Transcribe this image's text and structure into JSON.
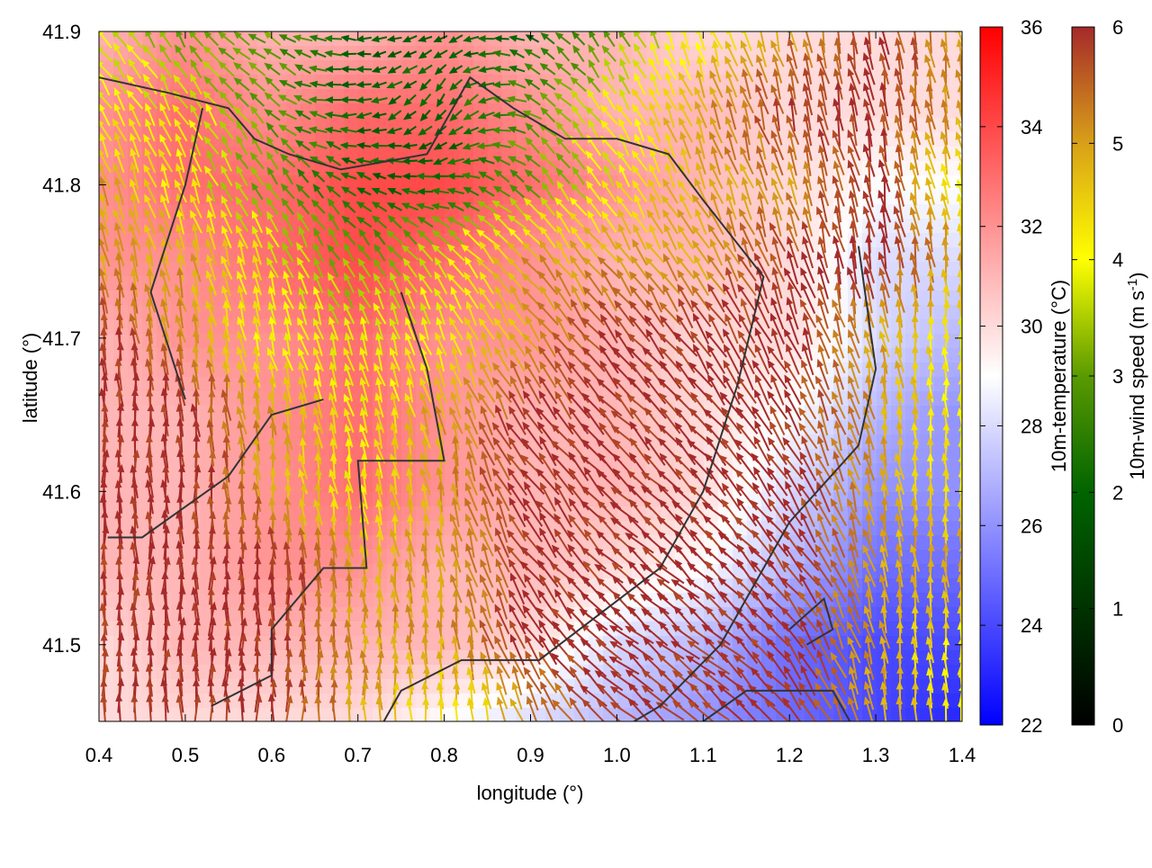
{
  "chart_data": {
    "type": "heatmap",
    "title": "",
    "xlabel": "longitude (°)",
    "ylabel": "latitude (°)",
    "xlim": [
      0.4,
      1.4
    ],
    "ylim": [
      41.45,
      41.9
    ],
    "xticks": [
      "0.4",
      "0.5",
      "0.6",
      "0.7",
      "0.8",
      "0.9",
      "1.0",
      "1.1",
      "1.2",
      "1.3",
      "1.4"
    ],
    "yticks": [
      "41.5",
      "41.6",
      "41.7",
      "41.8",
      "41.9"
    ],
    "grid_lon": [
      0.4,
      0.5,
      0.6,
      0.7,
      0.8,
      0.9,
      1.0,
      1.1,
      1.2,
      1.3,
      1.4
    ],
    "grid_lat": [
      41.9,
      41.85,
      41.8,
      41.75,
      41.7,
      41.65,
      41.6,
      41.55,
      41.5,
      41.45
    ],
    "temperature": [
      [
        31,
        32,
        31,
        31,
        32,
        31,
        31,
        30,
        30,
        30,
        30
      ],
      [
        32,
        33,
        32,
        33,
        33,
        32,
        31,
        31,
        30,
        30,
        30
      ],
      [
        32,
        33,
        33,
        34,
        34,
        33,
        32,
        31,
        30,
        29,
        29
      ],
      [
        32,
        32,
        33,
        34,
        33,
        32,
        31,
        31,
        30,
        28,
        28
      ],
      [
        31,
        32,
        32,
        33,
        32,
        32,
        31,
        30,
        30,
        28,
        27
      ],
      [
        31,
        31,
        32,
        33,
        32,
        31,
        31,
        30,
        29,
        27,
        26
      ],
      [
        31,
        31,
        32,
        33,
        32,
        31,
        31,
        30,
        28,
        26,
        26
      ],
      [
        31,
        31,
        32,
        32,
        31,
        31,
        30,
        29,
        27,
        25,
        25
      ],
      [
        30,
        31,
        31,
        31,
        31,
        30,
        28,
        27,
        25,
        24,
        24
      ],
      [
        30,
        30,
        30,
        30,
        29,
        28,
        27,
        26,
        25,
        24,
        23
      ]
    ],
    "wind_speed": [
      [
        4,
        3,
        3,
        2,
        2,
        2,
        3,
        4,
        5,
        6,
        5
      ],
      [
        4,
        4,
        3,
        2,
        2,
        3,
        4,
        5,
        6,
        6,
        5
      ],
      [
        5,
        4,
        3,
        2,
        2,
        3,
        4,
        5,
        5,
        6,
        4
      ],
      [
        5,
        5,
        4,
        3,
        4,
        5,
        5,
        5,
        6,
        6,
        5
      ],
      [
        6,
        5,
        4,
        4,
        4,
        5,
        6,
        6,
        6,
        5,
        4
      ],
      [
        6,
        6,
        5,
        4,
        5,
        6,
        6,
        6,
        6,
        5,
        4
      ],
      [
        6,
        6,
        5,
        4,
        5,
        6,
        6,
        6,
        6,
        5,
        4
      ],
      [
        6,
        6,
        6,
        5,
        5,
        6,
        6,
        6,
        6,
        5,
        5
      ],
      [
        6,
        6,
        6,
        5,
        5,
        6,
        6,
        6,
        6,
        5,
        4
      ],
      [
        6,
        6,
        6,
        5,
        4,
        5,
        6,
        6,
        6,
        5,
        4
      ]
    ],
    "wind_direction_to_deg": [
      [
        -40,
        -30,
        -60,
        -90,
        -120,
        -60,
        -30,
        -20,
        -15,
        -10,
        -10
      ],
      [
        -30,
        -30,
        -50,
        -100,
        -150,
        -60,
        -30,
        -20,
        -15,
        -10,
        -10
      ],
      [
        -20,
        -20,
        -30,
        -60,
        -90,
        -40,
        -30,
        -25,
        -15,
        -10,
        -15
      ],
      [
        -10,
        -15,
        -20,
        -30,
        -40,
        -40,
        -35,
        -30,
        -20,
        -10,
        -5
      ],
      [
        -5,
        -10,
        -15,
        -20,
        -20,
        -35,
        -40,
        -35,
        -25,
        -10,
        0
      ],
      [
        0,
        -5,
        -10,
        -15,
        -15,
        -35,
        -45,
        -40,
        -30,
        -10,
        0
      ],
      [
        0,
        0,
        -5,
        -10,
        -10,
        -35,
        -45,
        -45,
        -35,
        -10,
        0
      ],
      [
        0,
        0,
        0,
        -5,
        -10,
        -35,
        -50,
        -45,
        -40,
        -15,
        0
      ],
      [
        0,
        0,
        0,
        0,
        -5,
        -30,
        -50,
        -50,
        -40,
        -10,
        0
      ],
      [
        0,
        0,
        0,
        0,
        0,
        -25,
        -50,
        -50,
        -40,
        -10,
        0
      ]
    ],
    "contours": [
      [
        [
          0.4,
          41.87
        ],
        [
          0.48,
          41.86
        ],
        [
          0.55,
          41.85
        ],
        [
          0.58,
          41.83
        ],
        [
          0.62,
          41.82
        ],
        [
          0.68,
          41.81
        ],
        [
          0.78,
          41.82
        ],
        [
          0.83,
          41.87
        ],
        [
          0.88,
          41.85
        ],
        [
          0.94,
          41.83
        ],
        [
          1.0,
          41.83
        ],
        [
          1.06,
          41.82
        ],
        [
          1.1,
          41.79
        ],
        [
          1.17,
          41.74
        ],
        [
          1.14,
          41.67
        ],
        [
          1.1,
          41.6
        ],
        [
          1.05,
          41.55
        ],
        [
          0.98,
          41.52
        ],
        [
          0.91,
          41.49
        ],
        [
          0.82,
          41.49
        ],
        [
          0.75,
          41.47
        ],
        [
          0.73,
          41.45
        ]
      ],
      [
        [
          0.5,
          41.66
        ],
        [
          0.46,
          41.73
        ],
        [
          0.5,
          41.8
        ],
        [
          0.52,
          41.85
        ]
      ],
      [
        [
          0.66,
          41.66
        ],
        [
          0.6,
          41.65
        ],
        [
          0.55,
          41.61
        ],
        [
          0.45,
          41.57
        ],
        [
          0.41,
          41.57
        ]
      ],
      [
        [
          0.75,
          41.73
        ],
        [
          0.78,
          41.68
        ],
        [
          0.8,
          41.62
        ],
        [
          0.7,
          41.62
        ],
        [
          0.71,
          41.55
        ],
        [
          0.66,
          41.55
        ],
        [
          0.6,
          41.51
        ],
        [
          0.6,
          41.48
        ],
        [
          0.53,
          41.46
        ]
      ],
      [
        [
          1.28,
          41.76
        ],
        [
          1.3,
          41.68
        ],
        [
          1.28,
          41.63
        ],
        [
          1.2,
          41.58
        ],
        [
          1.12,
          41.5
        ],
        [
          1.05,
          41.46
        ],
        [
          1.02,
          41.45
        ]
      ],
      [
        [
          1.1,
          41.45
        ],
        [
          1.15,
          41.47
        ],
        [
          1.25,
          41.47
        ],
        [
          1.27,
          41.45
        ]
      ],
      [
        [
          1.2,
          41.51
        ],
        [
          1.24,
          41.53
        ],
        [
          1.25,
          41.51
        ],
        [
          1.22,
          41.5
        ]
      ]
    ],
    "colorbars": [
      {
        "label": "10m-temperature (°C)",
        "range": [
          22,
          36
        ],
        "ticks": [
          "22",
          "24",
          "26",
          "28",
          "30",
          "32",
          "34",
          "36"
        ]
      },
      {
        "label": "10m-wind speed (m s",
        "label_sup": "-1",
        "label_end": ")",
        "range": [
          0,
          6
        ],
        "ticks": [
          "0",
          "1",
          "2",
          "3",
          "4",
          "5",
          "6"
        ]
      }
    ]
  }
}
